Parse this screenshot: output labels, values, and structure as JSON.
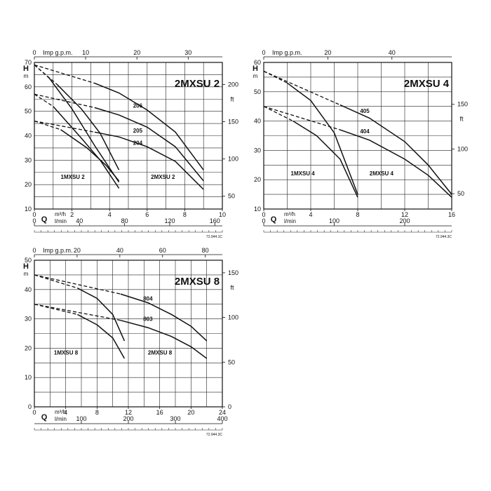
{
  "chart_data": [
    {
      "type": "line",
      "title": "2MXSU 2",
      "top_axis": {
        "label": "Imp g.p.m.",
        "ticks": [
          0,
          10,
          20,
          30
        ],
        "range": [
          0,
          36.66
        ]
      },
      "y_left": {
        "letter": "H",
        "unit": "m",
        "ticks": [
          10,
          20,
          30,
          40,
          50,
          60,
          70
        ],
        "range": [
          10,
          70
        ]
      },
      "y_right": {
        "unit": "ft",
        "ticks": [
          50,
          100,
          150,
          200
        ],
        "range": [
          32.8,
          229.7
        ]
      },
      "x_m3h": {
        "unit": "m³/h",
        "ticks": [
          0,
          2,
          4,
          6,
          8,
          10
        ],
        "range": [
          0,
          10
        ]
      },
      "x_lmin": {
        "unit": "l/min",
        "ticks": [
          0,
          40,
          80,
          120,
          160
        ],
        "range": [
          0,
          166.67
        ]
      },
      "q_label": "Q",
      "code": "72.944.1C",
      "pump_labels": [
        {
          "text": "1MXSU 2",
          "x": 1.4,
          "y": 22.3
        },
        {
          "text": "2MXSU 2",
          "x": 6.2,
          "y": 22.3
        }
      ],
      "series": [
        {
          "name": "206",
          "label_at": [
            5.5,
            51.5
          ],
          "dashed": [
            [
              0,
              69
            ],
            [
              3.2,
              61.5
            ]
          ],
          "solid": [
            [
              3.2,
              61.5
            ],
            [
              4.5,
              57.5
            ],
            [
              6.0,
              50.5
            ],
            [
              7.5,
              41.5
            ],
            [
              9.0,
              26
            ]
          ]
        },
        {
          "name": "205",
          "label_at": [
            5.5,
            41.3
          ],
          "dashed": [
            [
              0,
              57
            ],
            [
              3.2,
              51.5
            ]
          ],
          "solid": [
            [
              3.2,
              51.5
            ],
            [
              4.5,
              48.5
            ],
            [
              6.0,
              43.5
            ],
            [
              7.5,
              35.5
            ],
            [
              9.0,
              21.5
            ]
          ]
        },
        {
          "name": "204",
          "label_at": [
            5.5,
            36.3
          ],
          "dashed": [
            [
              0,
              46
            ],
            [
              3.2,
              41.5
            ]
          ],
          "solid": [
            [
              3.2,
              41.5
            ],
            [
              4.5,
              39.5
            ],
            [
              6.0,
              35.5
            ],
            [
              7.5,
              29.5
            ],
            [
              9.0,
              18
            ]
          ]
        },
        {
          "name": "",
          "dashed": [
            [
              0,
              69
            ],
            [
              1.2,
              61
            ]
          ],
          "solid": [
            [
              1.2,
              61
            ],
            [
              2.5,
              51
            ],
            [
              3.5,
              41
            ],
            [
              4.5,
              26
            ]
          ]
        },
        {
          "name": "",
          "dashed": [
            [
              0,
              69
            ],
            [
              0.8,
              63.5
            ]
          ],
          "solid": [
            [
              0.8,
              63.5
            ],
            [
              2.0,
              51
            ],
            [
              3.2,
              36
            ],
            [
              4.5,
              21
            ]
          ]
        },
        {
          "name": "",
          "dashed": [
            [
              0,
              57
            ],
            [
              1.0,
              52
            ]
          ],
          "solid": [
            [
              1.0,
              52
            ],
            [
              2.5,
              39
            ],
            [
              3.5,
              30
            ],
            [
              4.5,
              18.5
            ]
          ]
        },
        {
          "name": "",
          "dashed": [
            [
              0,
              46
            ],
            [
              1.4,
              42.5
            ]
          ],
          "solid": [
            [
              1.4,
              42.5
            ],
            [
              2.8,
              35
            ],
            [
              3.8,
              28
            ],
            [
              4.5,
              21.5
            ]
          ]
        }
      ]
    },
    {
      "type": "line",
      "title": "2MXSU 4",
      "top_axis": {
        "label": "Imp g.p.m.",
        "ticks": [
          0,
          20,
          40
        ],
        "range": [
          0,
          58.66
        ]
      },
      "y_left": {
        "letter": "H",
        "unit": "m",
        "ticks": [
          10,
          20,
          30,
          40,
          50,
          60
        ],
        "range": [
          10,
          60
        ]
      },
      "y_right": {
        "unit": "ft",
        "ticks": [
          50,
          100,
          150
        ],
        "range": [
          32.8,
          196.9
        ]
      },
      "x_m3h": {
        "unit": "m³/h",
        "ticks": [
          0,
          4,
          8,
          12,
          16
        ],
        "range": [
          0,
          16
        ]
      },
      "x_lmin": {
        "unit": "l/min",
        "ticks": [
          0,
          100,
          200
        ],
        "range": [
          0,
          266.67
        ]
      },
      "q_label": "Q",
      "code": "72.944.3C",
      "pump_labels": [
        {
          "text": "1MXSU 4",
          "x": 2.3,
          "y": 21.5
        },
        {
          "text": "2MXSU 4",
          "x": 9.0,
          "y": 21.5
        }
      ],
      "series": [
        {
          "name": "405",
          "label_at": [
            8.6,
            42.8
          ],
          "dashed": [
            [
              0,
              57
            ],
            [
              6.5,
              45.5
            ]
          ],
          "solid": [
            [
              6.5,
              45.5
            ],
            [
              9,
              41
            ],
            [
              12,
              33
            ],
            [
              14,
              25
            ],
            [
              16,
              15
            ]
          ]
        },
        {
          "name": "404",
          "label_at": [
            8.6,
            35.8
          ],
          "dashed": [
            [
              0,
              45
            ],
            [
              6.5,
              37
            ]
          ],
          "solid": [
            [
              6.5,
              37
            ],
            [
              9,
              33.5
            ],
            [
              12,
              27
            ],
            [
              14,
              21.5
            ],
            [
              16,
              14
            ]
          ]
        },
        {
          "name": "",
          "dashed": [
            [
              0,
              57
            ],
            [
              2.0,
              53
            ]
          ],
          "solid": [
            [
              2.0,
              53
            ],
            [
              4,
              47
            ],
            [
              6,
              36
            ],
            [
              8,
              15
            ]
          ]
        },
        {
          "name": "",
          "dashed": [
            [
              0,
              45
            ],
            [
              2.5,
              40
            ]
          ],
          "solid": [
            [
              2.5,
              40
            ],
            [
              4.5,
              35
            ],
            [
              6.5,
              27
            ],
            [
              8,
              14
            ]
          ]
        }
      ]
    },
    {
      "type": "line",
      "title": "2MXSU 8",
      "top_axis": {
        "label": "Imp g.p.m.",
        "ticks": [
          0,
          20,
          40,
          60,
          80
        ],
        "range": [
          0,
          87.98
        ]
      },
      "y_left": {
        "letter": "H",
        "unit": "m",
        "ticks": [
          0,
          10,
          20,
          30,
          40,
          50
        ],
        "range": [
          0,
          50
        ]
      },
      "y_right": {
        "unit": "ft",
        "ticks": [
          0,
          50,
          100,
          150
        ],
        "range": [
          0,
          164.04
        ]
      },
      "x_m3h": {
        "unit": "m³/h",
        "ticks": [
          0,
          4,
          8,
          12,
          16,
          20,
          24
        ],
        "range": [
          0,
          24
        ]
      },
      "x_lmin": {
        "unit": "l/min",
        "ticks": [
          100,
          200,
          300,
          400
        ],
        "range": [
          0,
          400
        ]
      },
      "q_label": "Q",
      "code": "72.944.3C",
      "pump_labels": [
        {
          "text": "1MXSU 8",
          "x": 2.5,
          "y": 17.8
        },
        {
          "text": "2MXSU 8",
          "x": 14.5,
          "y": 17.8
        }
      ],
      "series": [
        {
          "name": "804",
          "label_at": [
            14.5,
            36.3
          ],
          "dashed": [
            [
              0,
              45
            ],
            [
              11,
              38.5
            ]
          ],
          "solid": [
            [
              11,
              38.5
            ],
            [
              14.5,
              35.5
            ],
            [
              17.5,
              31.5
            ],
            [
              20,
              27.5
            ],
            [
              22,
              22.5
            ]
          ]
        },
        {
          "name": "803",
          "label_at": [
            14.5,
            29.3
          ],
          "dashed": [
            [
              0,
              35
            ],
            [
              11,
              29.5
            ]
          ],
          "solid": [
            [
              11,
              29.5
            ],
            [
              14.5,
              27
            ],
            [
              17.5,
              24
            ],
            [
              20,
              20.5
            ],
            [
              22,
              16.5
            ]
          ]
        },
        {
          "name": "",
          "dashed": [
            [
              0,
              45
            ],
            [
              5.5,
              40.5
            ]
          ],
          "solid": [
            [
              5.5,
              40.5
            ],
            [
              8,
              37
            ],
            [
              10,
              31.5
            ],
            [
              11.5,
              22.5
            ]
          ]
        },
        {
          "name": "",
          "dashed": [
            [
              0,
              35
            ],
            [
              5.5,
              31.5
            ]
          ],
          "solid": [
            [
              5.5,
              31.5
            ],
            [
              8,
              28
            ],
            [
              10,
              23.5
            ],
            [
              11.5,
              16.5
            ]
          ]
        }
      ]
    }
  ]
}
